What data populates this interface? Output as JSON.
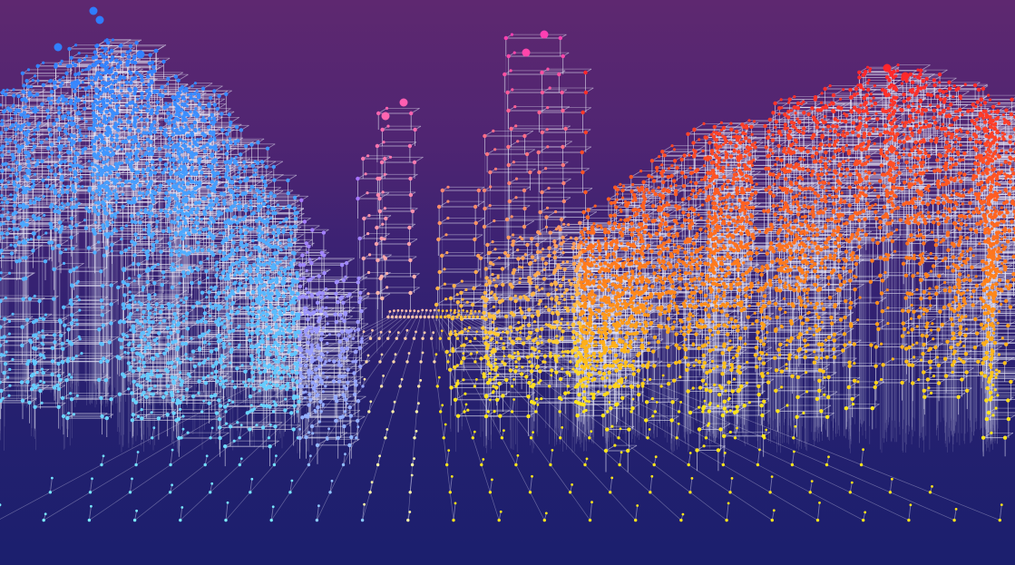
{
  "scene": {
    "colors": {
      "background_top": "#5e2870",
      "background_bottom": "#1b1f6e",
      "edge": "#e6e6f5",
      "stem": "#b9b9dc",
      "left_high": "#2f7cff",
      "left_low": "#7ff2ff",
      "center_left": "#b34dff",
      "center": "#ff3fb2",
      "center_low": "#fff7a8",
      "right_high": "#ff1f2d",
      "right_mid": "#ff8a1a",
      "right_low": "#ffe51a"
    },
    "clusters": [
      {
        "name": "left-skyline-cluster",
        "color": "left_high"
      },
      {
        "name": "center-tower-cluster",
        "color": "center"
      },
      {
        "name": "center-right-tower-cluster",
        "color": "center"
      },
      {
        "name": "right-skyline-cluster",
        "color": "right_high"
      }
    ],
    "ground_grid": {
      "columns": 22,
      "rows": 9
    }
  }
}
